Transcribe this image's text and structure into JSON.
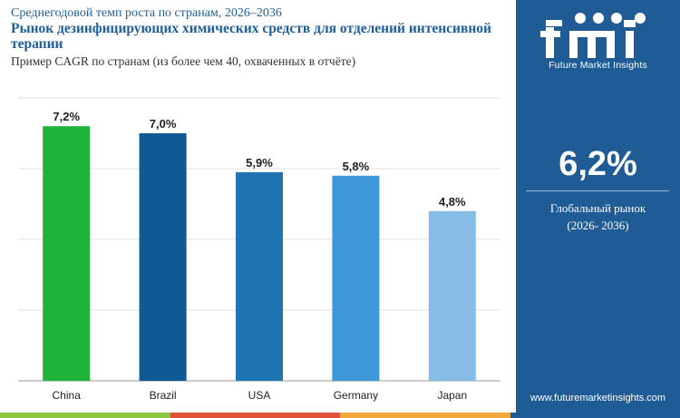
{
  "header": {
    "subtitle_top": "Среднегодовой темп роста по странам, 2026–2036",
    "title": "Рынок дезинфицирующих химических средств для отделений интенсивной терапии",
    "subtitle": "Пример CAGR по странам (из более чем 40, охваченных в отчёте)"
  },
  "chart_data": {
    "type": "bar",
    "categories": [
      "China",
      "Brazil",
      "USA",
      "Germany",
      "Japan"
    ],
    "values": [
      7.2,
      7.0,
      5.9,
      5.8,
      4.8
    ],
    "value_labels": [
      "7,2%",
      "7,0%",
      "5,9%",
      "5,8%",
      "4,8%"
    ],
    "colors": [
      "#1fb33a",
      "#0f5a94",
      "#1f74b4",
      "#3d97d8",
      "#86bde6"
    ],
    "ylim": [
      0,
      8
    ],
    "grid": true,
    "title": "",
    "xlabel": "",
    "ylabel": ""
  },
  "sidebar": {
    "logo_text": "Future Market Insights",
    "global_value": "6,2%",
    "global_label_line1": "Глобальный рынок",
    "global_label_line2": "(2026- 2036)",
    "website": "www.futuremarketinsights.com",
    "background_color": "#1f5b94"
  },
  "stripe_colors": [
    "#8dc63f",
    "#e0523a",
    "#f3a83b",
    "#1f5b94"
  ]
}
